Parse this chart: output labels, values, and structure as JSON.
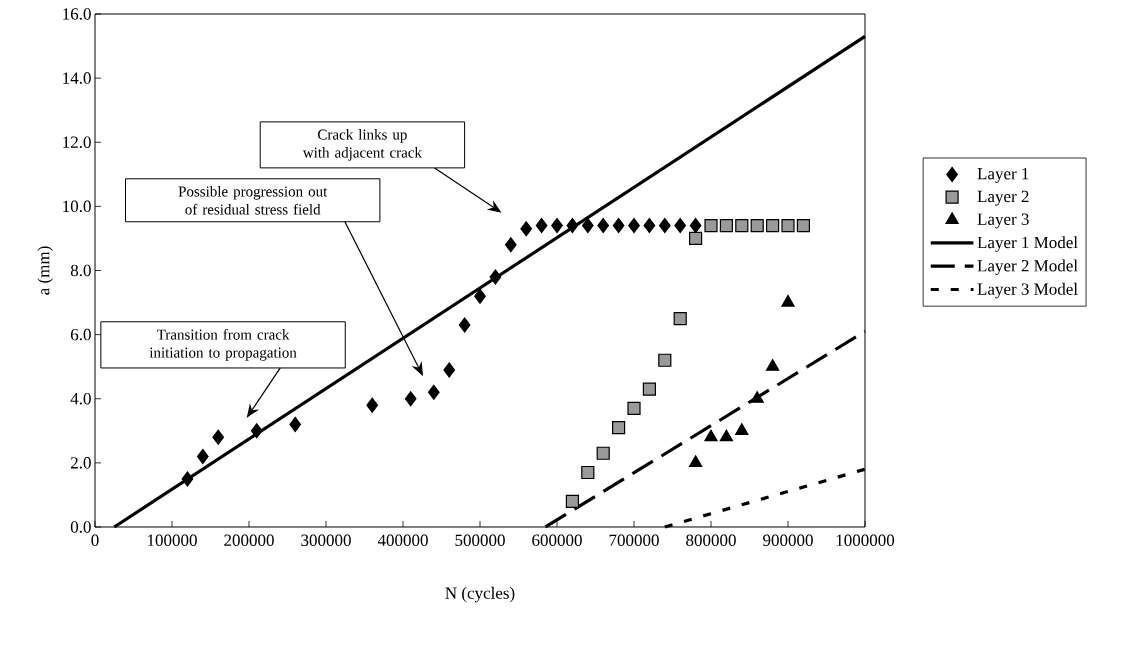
{
  "chart_data": {
    "type": "scatter",
    "xlabel": "N (cycles)",
    "ylabel": "a (mm)",
    "xlim": [
      0,
      1000000
    ],
    "ylim": [
      0,
      16
    ],
    "xticks": [
      0,
      100000,
      200000,
      300000,
      400000,
      500000,
      600000,
      700000,
      800000,
      900000,
      1000000
    ],
    "yticks": [
      {
        "value": 0,
        "label": "0.0"
      },
      {
        "value": 2,
        "label": "2.0"
      },
      {
        "value": 4,
        "label": "4.0"
      },
      {
        "value": 6,
        "label": "6.0"
      },
      {
        "value": 8,
        "label": "8.0"
      },
      {
        "value": 10,
        "label": "10.0"
      },
      {
        "value": 12,
        "label": "12.0"
      },
      {
        "value": 14,
        "label": "14.0"
      },
      {
        "value": 16,
        "label": "16.0"
      }
    ],
    "grid": false,
    "legend": "right",
    "series": [
      {
        "name": "Layer 1",
        "marker": "diamond",
        "color": "#000000",
        "x": [
          120000,
          140000,
          160000,
          210000,
          260000,
          360000,
          410000,
          440000,
          460000,
          480000,
          500000,
          520000,
          540000,
          560000,
          580000,
          600000,
          620000,
          640000,
          660000,
          680000,
          700000,
          720000,
          740000,
          760000,
          780000
        ],
        "values": [
          1.5,
          2.2,
          2.8,
          3.0,
          3.2,
          3.8,
          4.0,
          4.2,
          4.9,
          6.3,
          7.2,
          7.8,
          8.8,
          9.3,
          9.4,
          9.4,
          9.4,
          9.4,
          9.4,
          9.4,
          9.4,
          9.4,
          9.4,
          9.4,
          9.4
        ]
      },
      {
        "name": "Layer 2",
        "marker": "square",
        "color": "#9a9a9a",
        "x": [
          620000,
          640000,
          660000,
          680000,
          700000,
          720000,
          740000,
          760000,
          780000,
          800000,
          820000,
          840000,
          860000,
          880000,
          900000,
          920000
        ],
        "values": [
          0.8,
          1.7,
          2.3,
          3.1,
          3.7,
          4.3,
          5.2,
          6.5,
          9.0,
          9.4,
          9.4,
          9.4,
          9.4,
          9.4,
          9.4,
          9.4
        ]
      },
      {
        "name": "Layer 3",
        "marker": "triangle",
        "color": "#000000",
        "x": [
          780000,
          800000,
          820000,
          840000,
          860000,
          880000,
          900000
        ],
        "values": [
          2.0,
          2.8,
          2.8,
          3.0,
          4.0,
          5.0,
          7.0
        ]
      },
      {
        "name": "Layer 1 Model",
        "type": "line",
        "line_style": "solid",
        "color": "#000000",
        "x": [
          25000,
          1000000
        ],
        "values": [
          0,
          15.3
        ]
      },
      {
        "name": "Layer 2 Model",
        "type": "line",
        "line_style": "dashed",
        "color": "#000000",
        "x": [
          585000,
          1000000
        ],
        "values": [
          0,
          6.1
        ]
      },
      {
        "name": "Layer 3 Model",
        "type": "line",
        "line_style": "dotted",
        "color": "#000000",
        "x": [
          740000,
          1000000
        ],
        "values": [
          0,
          1.8
        ]
      }
    ],
    "annotations": [
      "Crack links up with adjacent crack",
      "Possible progression out of residual stress field",
      "Transition from crack initiation to propagation"
    ]
  }
}
